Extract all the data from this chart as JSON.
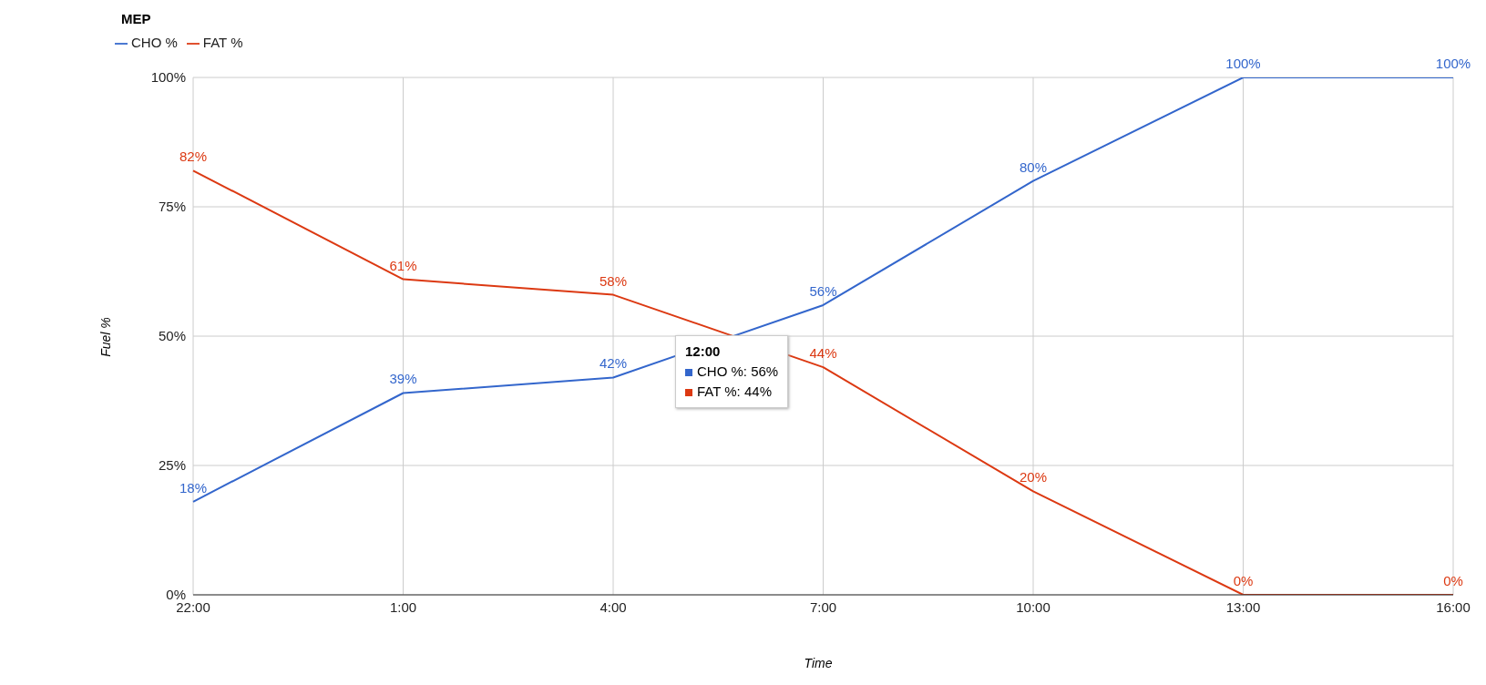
{
  "chart_data": {
    "type": "line",
    "title": "MEP",
    "xlabel": "Time",
    "ylabel": "Fuel %",
    "categories": [
      "22:00",
      "1:00",
      "4:00",
      "7:00",
      "10:00",
      "13:00",
      "16:00"
    ],
    "series": [
      {
        "name": "CHO %",
        "color": "#3366cc",
        "values": [
          18,
          39,
          42,
          56,
          80,
          100,
          100
        ],
        "value_labels": [
          "18%",
          "39%",
          "42%",
          "56%",
          "80%",
          "100%",
          "100%"
        ]
      },
      {
        "name": "FAT %",
        "color": "#dc3912",
        "values": [
          82,
          61,
          58,
          44,
          20,
          0,
          0
        ],
        "value_labels": [
          "82%",
          "61%",
          "58%",
          "44%",
          "20%",
          "0%",
          "0%"
        ]
      }
    ],
    "ylim": [
      0,
      100
    ],
    "yticks": [
      {
        "value": 0,
        "label": "0%"
      },
      {
        "value": 25,
        "label": "25%"
      },
      {
        "value": 50,
        "label": "50%"
      },
      {
        "value": 75,
        "label": "75%"
      },
      {
        "value": 100,
        "label": "100%"
      }
    ],
    "grid": true,
    "legend": "top left",
    "marker": "none",
    "line_style": "solid",
    "annotations": [
      "12:00",
      "CHO %: 56%",
      "FAT %: 44%"
    ]
  }
}
